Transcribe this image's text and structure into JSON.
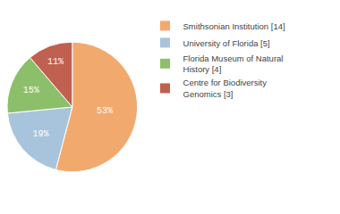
{
  "chart_data": {
    "type": "pie",
    "categories": [
      "Smithsonian Institution [14]",
      "University of Florida [5]",
      "Florida Museum of Natural\nHistory [4]",
      "Centre for Biodiversity\nGenomics [3]"
    ],
    "values": [
      53,
      19,
      15,
      11
    ],
    "value_labels": [
      "53%",
      "19%",
      "15%",
      "11%"
    ],
    "colors": [
      "#F2A96E",
      "#A8C4DC",
      "#8CBF6A",
      "#C06050"
    ],
    "data_labels": true,
    "legend": "right"
  }
}
